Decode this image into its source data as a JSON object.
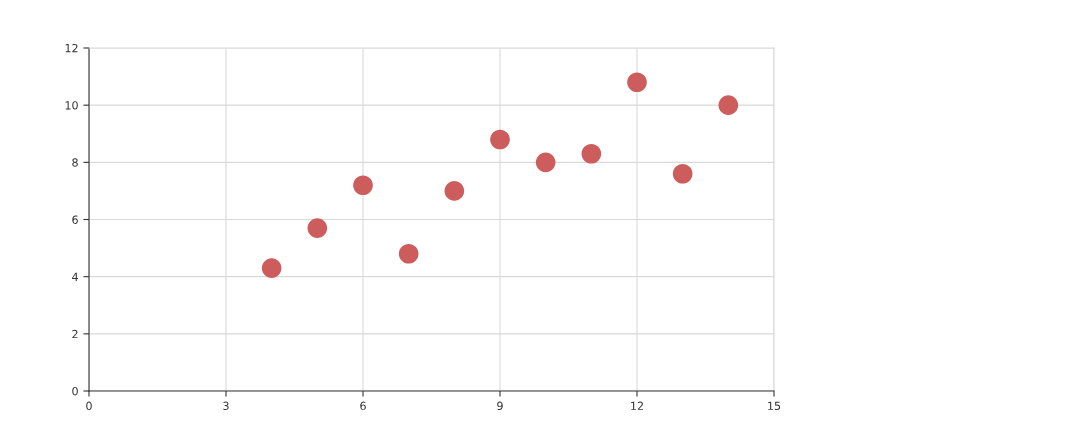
{
  "chart_data": {
    "type": "scatter",
    "x": [
      10,
      8,
      13,
      9,
      11,
      14,
      6,
      4,
      12,
      7,
      5
    ],
    "values": [
      8.0,
      7.0,
      7.6,
      8.8,
      8.3,
      10.0,
      7.2,
      4.3,
      10.8,
      4.8,
      5.7
    ],
    "color": "#cd5c5c",
    "marker": "circle",
    "xlim": [
      0,
      15
    ],
    "xticks": [
      0,
      3,
      6,
      9,
      12,
      15
    ],
    "ylim": [
      0,
      12
    ],
    "yticks": [
      0,
      2,
      4,
      6,
      8,
      10,
      12
    ],
    "grid": true
  }
}
